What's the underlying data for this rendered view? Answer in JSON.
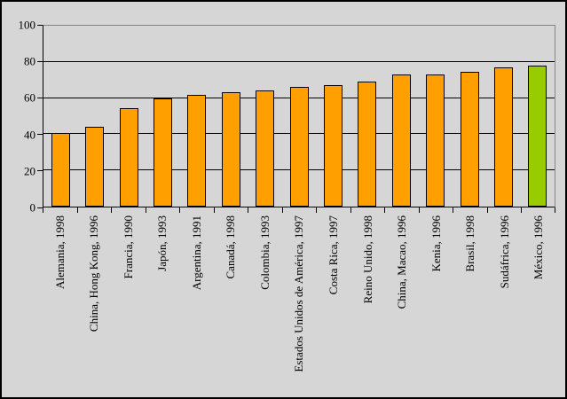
{
  "chart_data": {
    "type": "bar",
    "title": "",
    "xlabel": "",
    "ylabel": "",
    "categories": [
      "Alemania, 1998",
      "China, Hong Kong, 1996",
      "Francia, 1990",
      "Japón, 1993",
      "Argentina, 1991",
      "Canadá, 1998",
      "Colombia, 1993",
      "Estados Unidos de América, 1997",
      "Costa Rica, 1997",
      "Reino Unido, 1998",
      "China, Macao, 1996",
      "Kenia, 1996",
      "Brasil, 1998",
      "Sudáfrica, 1996",
      "México, 1996"
    ],
    "values": [
      40.5,
      44,
      54.5,
      60,
      62,
      63,
      64,
      66,
      67,
      69,
      73,
      73,
      74.5,
      77,
      78
    ],
    "bar_colors": [
      "#FFA000",
      "#FFA000",
      "#FFA000",
      "#FFA000",
      "#FFA000",
      "#FFA000",
      "#FFA000",
      "#FFA000",
      "#FFA000",
      "#FFA000",
      "#FFA000",
      "#FFA000",
      "#FFA000",
      "#FFA000",
      "#99CC00"
    ],
    "ylim": [
      0,
      100
    ],
    "yticks": [
      0,
      20,
      40,
      60,
      80,
      100
    ],
    "grid": "horizontal",
    "legend": "none",
    "colors": {
      "bar_default": "#FFA000",
      "bar_highlight": "#99CC00",
      "background": "#D6D6D6",
      "gridline": "#000000",
      "plot_border": "#848484",
      "axis": "#000000"
    }
  }
}
